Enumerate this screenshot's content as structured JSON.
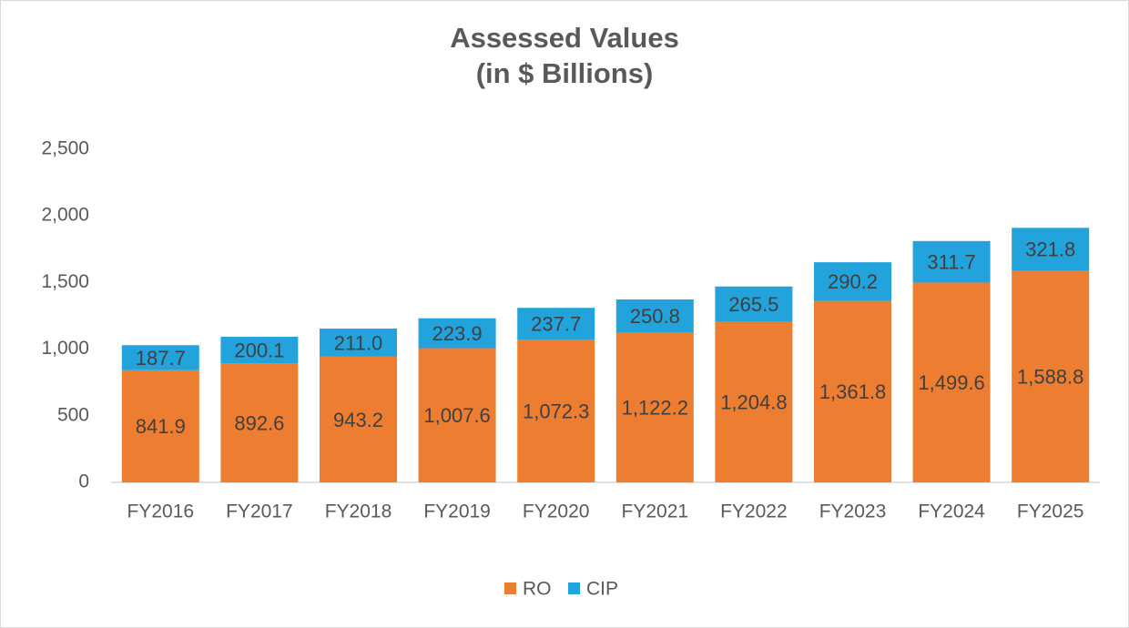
{
  "chart_data": {
    "type": "stacked-bar",
    "title": "Assessed Values",
    "subtitle": "(in $ Billions)",
    "categories": [
      "FY2016",
      "FY2017",
      "FY2018",
      "FY2019",
      "FY2020",
      "FY2021",
      "FY2022",
      "FY2023",
      "FY2024",
      "FY2025"
    ],
    "series": [
      {
        "name": "RO",
        "color": "#ed7d31",
        "values": [
          841.9,
          892.6,
          943.2,
          1007.6,
          1072.3,
          1122.2,
          1204.8,
          1361.8,
          1499.6,
          1588.8
        ],
        "value_labels": [
          "841.9",
          "892.6",
          "943.2",
          "1,007.6",
          "1,072.3",
          "1,122.2",
          "1,204.8",
          "1,361.8",
          "1,499.6",
          "1,588.8"
        ]
      },
      {
        "name": "CIP",
        "color": "#22a3db",
        "values": [
          187.7,
          200.1,
          211.0,
          223.9,
          237.7,
          250.8,
          265.5,
          290.2,
          311.7,
          321.8
        ],
        "value_labels": [
          "187.7",
          "200.1",
          "211.0",
          "223.9",
          "237.7",
          "250.8",
          "265.5",
          "290.2",
          "311.7",
          "321.8"
        ]
      }
    ],
    "ylim": [
      0,
      2500
    ],
    "yticks": [
      0,
      500,
      {
        "value": 1000,
        "label": "1,000"
      },
      {
        "value": 1500,
        "label": "1,500"
      },
      {
        "value": 2000,
        "label": "2,000"
      },
      {
        "value": 2500,
        "label": "2,500"
      }
    ],
    "grid": false,
    "legend": "bottom"
  }
}
